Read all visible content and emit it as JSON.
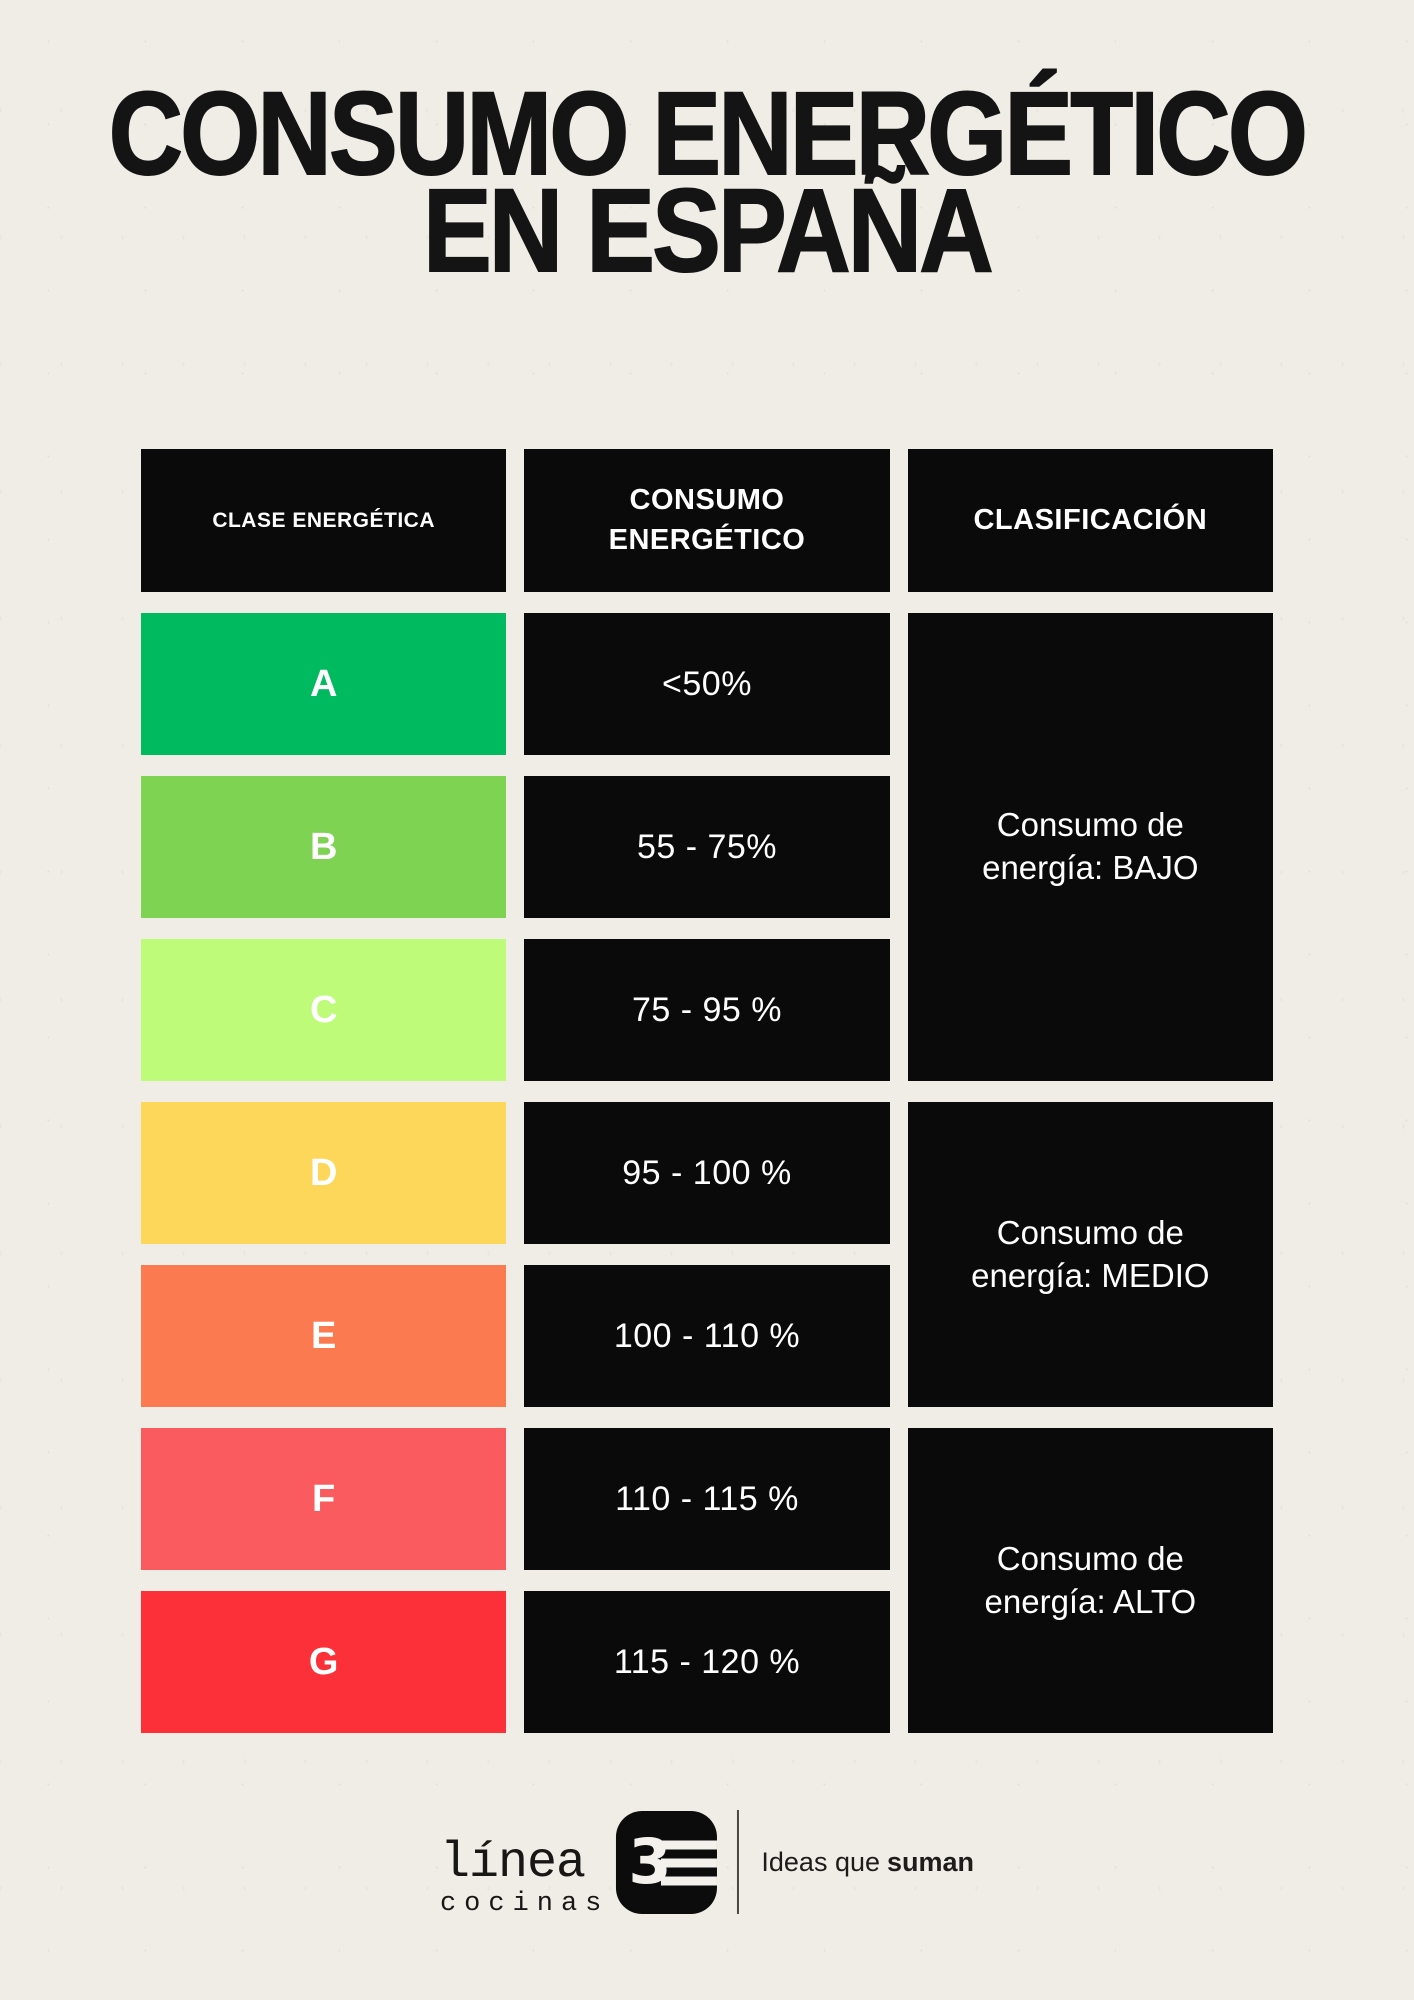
{
  "title": {
    "line1": "CONSUMO ENERGÉTICO",
    "line2": "EN ESPAÑA"
  },
  "table": {
    "headers": [
      "CLASE ENERGÉTICA",
      "CONSUMO\nENERGÉTICO",
      "CLASIFICACIÓN"
    ],
    "rows": [
      {
        "label": "A",
        "range": "<50%",
        "color": "#00ba60"
      },
      {
        "label": "B",
        "range": "55 - 75%",
        "color": "#7ed452"
      },
      {
        "label": "C",
        "range": "75 - 95 %",
        "color": "#befb79"
      },
      {
        "label": "D",
        "range": "95 - 100 %",
        "color": "#fdd75a"
      },
      {
        "label": "E",
        "range": "100 - 110 %",
        "color": "#fb7a50"
      },
      {
        "label": "F",
        "range": "110 - 115 %",
        "color": "#f95b5f"
      },
      {
        "label": "G",
        "range": "115 - 120 %",
        "color": "#fc3038"
      }
    ],
    "classifications": [
      {
        "text": "Consumo de\nenergía: BAJO",
        "spans": "A-C"
      },
      {
        "text": "Consumo de\nenergía: MEDIO",
        "spans": "D-E"
      },
      {
        "text": "Consumo de\nenergía: ALTO",
        "spans": "F-G"
      }
    ]
  },
  "logo": {
    "brand_name": "línea",
    "brand_sub": "cocinas",
    "mark_numeral": "3",
    "tagline_regular": "Ideas que",
    "tagline_bold": "suman"
  },
  "colors": {
    "background": "#f0ece6",
    "cell_black": "#0a0a0b",
    "ink": "#141414"
  }
}
